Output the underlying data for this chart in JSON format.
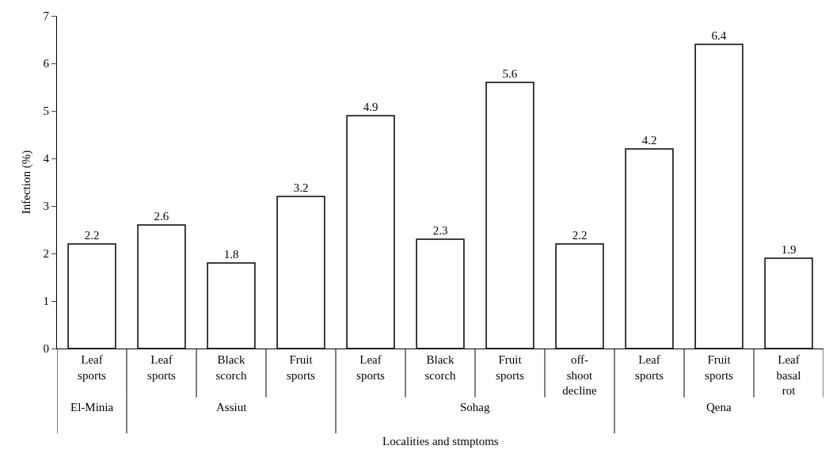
{
  "chart_data": {
    "type": "bar",
    "categories": [
      "Leaf\nsports",
      "Leaf\nsports",
      "Black\nscorch",
      "Fruit\nsports",
      "Leaf\nsports",
      "Black\nscorch",
      "Fruit\nsports",
      "off-\nshoot\ndecline",
      "Leaf\nsports",
      "Fruit\nsports",
      "Leaf\nbasal\nrot"
    ],
    "values": [
      2.2,
      2.6,
      1.8,
      3.2,
      4.9,
      2.3,
      5.6,
      2.2,
      4.2,
      6.4,
      1.9
    ],
    "color": "#ffffff",
    "data_labels": true,
    "xlabel": "Localities and stmptoms",
    "ylabel": "Infection (%)",
    "ylim": [
      0,
      7
    ],
    "yticks": [
      0,
      1,
      2,
      3,
      4,
      5,
      6,
      7
    ],
    "annotations": [
      "El-Minia",
      "Assiut",
      "Sohag",
      "Qena"
    ]
  }
}
